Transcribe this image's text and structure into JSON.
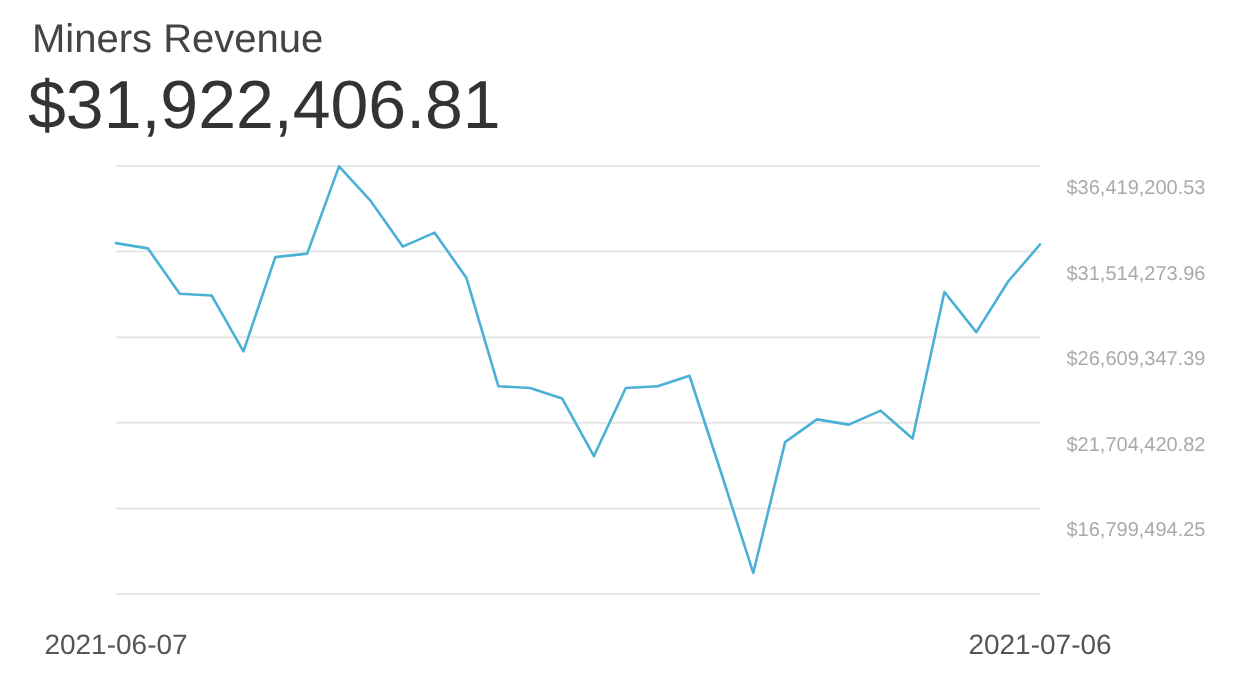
{
  "chart_data": {
    "type": "line",
    "title": "Miners Revenue",
    "subtitle": "$31,922,406.81",
    "x": [
      "2021-06-07",
      "2021-06-08",
      "2021-06-09",
      "2021-06-10",
      "2021-06-11",
      "2021-06-12",
      "2021-06-13",
      "2021-06-14",
      "2021-06-15",
      "2021-06-16",
      "2021-06-17",
      "2021-06-18",
      "2021-06-19",
      "2021-06-20",
      "2021-06-21",
      "2021-06-22",
      "2021-06-23",
      "2021-06-24",
      "2021-06-25",
      "2021-06-26",
      "2021-06-27",
      "2021-06-28",
      "2021-06-29",
      "2021-06-30",
      "2021-07-01",
      "2021-07-02",
      "2021-07-03",
      "2021-07-04",
      "2021-07-05",
      "2021-07-06"
    ],
    "series": [
      {
        "color": "#4ab0d6",
        "values": [
          32000000,
          31700000,
          29100000,
          29000000,
          25800000,
          31200000,
          31400000,
          36400000,
          34400000,
          31800000,
          32600000,
          30000000,
          23800000,
          23700000,
          23100000,
          19800000,
          23700000,
          23800000,
          24400000,
          18800000,
          13100000,
          20600000,
          21900000,
          21600000,
          22400000,
          20800000,
          29200000,
          26900000,
          29800000,
          31922406.81
        ]
      }
    ],
    "xlim": [
      "2021-06-07",
      "2021-07-06"
    ],
    "xticks": [
      {
        "value": "2021-06-07",
        "label": "2021-06-07"
      },
      {
        "value": "2021-07-06",
        "label": "2021-07-06"
      }
    ],
    "ylim": [
      11894567.68,
      36419200.53
    ],
    "yticks": [
      {
        "value": 11894567.68,
        "label": null
      },
      {
        "value": 16799494.25,
        "label": "$16,799,494.25"
      },
      {
        "value": 21704420.82,
        "label": "$21,704,420.82"
      },
      {
        "value": 26609347.39,
        "label": "$26,609,347.39"
      },
      {
        "value": 31514273.96,
        "label": "$31,514,273.96"
      },
      {
        "value": 36419200.53,
        "label": "$36,419,200.53"
      }
    ],
    "grid": "y",
    "marker": "none",
    "line_style": "solid"
  }
}
